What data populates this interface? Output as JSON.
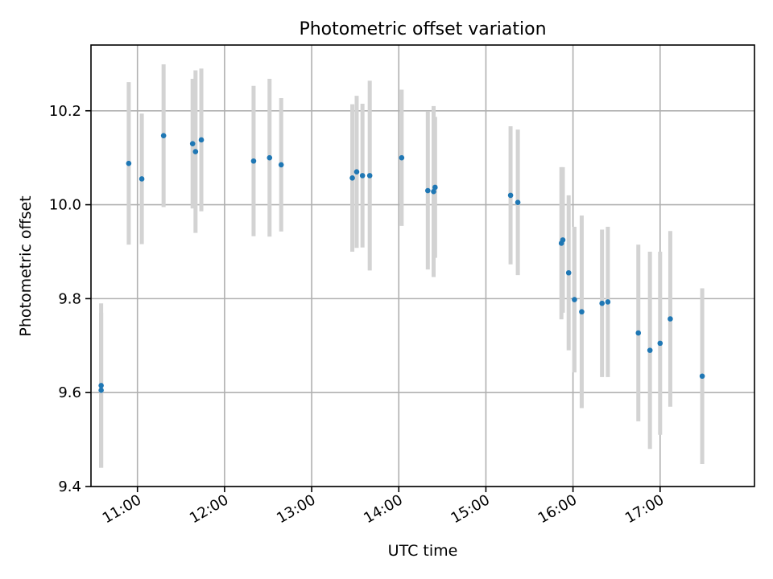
{
  "chart_data": {
    "type": "scatter",
    "title": "Photometric offset variation",
    "xlabel": "UTC time",
    "ylabel": "Photometric offset",
    "x_unit": "UTC time (HH:MM)",
    "xlim": [
      "10:28",
      "18:05"
    ],
    "ylim": [
      9.4,
      10.34
    ],
    "x_ticks": [
      "11:00",
      "12:00",
      "13:00",
      "14:00",
      "15:00",
      "16:00",
      "17:00"
    ],
    "y_ticks": [
      9.4,
      9.6,
      9.8,
      10.0,
      10.2
    ],
    "y_tick_labels": [
      "9.4",
      "9.6",
      "9.8",
      "10.0",
      "10.2"
    ],
    "grid": true,
    "x_tick_rotation_deg": 30,
    "colors": {
      "marker": "#1f77b4",
      "errorbar": "#d3d3d3",
      "grid": "#b0b0b0"
    },
    "points": [
      {
        "x": "10:35",
        "y": 9.605,
        "yerr": 0.165
      },
      {
        "x": "10:35",
        "y": 9.615,
        "yerr": 0.175
      },
      {
        "x": "10:54",
        "y": 10.088,
        "yerr": 0.173
      },
      {
        "x": "11:03",
        "y": 10.055,
        "yerr": 0.139
      },
      {
        "x": "11:18",
        "y": 10.147,
        "yerr": 0.152
      },
      {
        "x": "11:38",
        "y": 10.13,
        "yerr": 0.138
      },
      {
        "x": "11:40",
        "y": 10.113,
        "yerr": 0.173
      },
      {
        "x": "11:44",
        "y": 10.138,
        "yerr": 0.152
      },
      {
        "x": "12:20",
        "y": 10.093,
        "yerr": 0.16
      },
      {
        "x": "12:31",
        "y": 10.1,
        "yerr": 0.168
      },
      {
        "x": "12:39",
        "y": 10.085,
        "yerr": 0.142
      },
      {
        "x": "13:28",
        "y": 10.057,
        "yerr": 0.157
      },
      {
        "x": "13:31",
        "y": 10.07,
        "yerr": 0.162
      },
      {
        "x": "13:35",
        "y": 10.062,
        "yerr": 0.153
      },
      {
        "x": "13:40",
        "y": 10.062,
        "yerr": 0.202
      },
      {
        "x": "14:02",
        "y": 10.1,
        "yerr": 0.145
      },
      {
        "x": "14:20",
        "y": 10.03,
        "yerr": 0.168
      },
      {
        "x": "14:24",
        "y": 10.028,
        "yerr": 0.182
      },
      {
        "x": "14:25",
        "y": 10.037,
        "yerr": 0.15
      },
      {
        "x": "15:17",
        "y": 10.02,
        "yerr": 0.147
      },
      {
        "x": "15:22",
        "y": 10.005,
        "yerr": 0.155
      },
      {
        "x": "15:52",
        "y": 9.918,
        "yerr": 0.162
      },
      {
        "x": "15:53",
        "y": 9.925,
        "yerr": 0.155
      },
      {
        "x": "15:57",
        "y": 9.855,
        "yerr": 0.165
      },
      {
        "x": "16:01",
        "y": 9.798,
        "yerr": 0.155
      },
      {
        "x": "16:06",
        "y": 9.772,
        "yerr": 0.205
      },
      {
        "x": "16:20",
        "y": 9.79,
        "yerr": 0.157
      },
      {
        "x": "16:24",
        "y": 9.793,
        "yerr": 0.16
      },
      {
        "x": "16:45",
        "y": 9.727,
        "yerr": 0.188
      },
      {
        "x": "16:53",
        "y": 9.69,
        "yerr": 0.21
      },
      {
        "x": "17:00",
        "y": 9.705,
        "yerr": 0.195
      },
      {
        "x": "17:07",
        "y": 9.757,
        "yerr": 0.187
      },
      {
        "x": "17:29",
        "y": 9.635,
        "yerr": 0.187
      }
    ]
  }
}
